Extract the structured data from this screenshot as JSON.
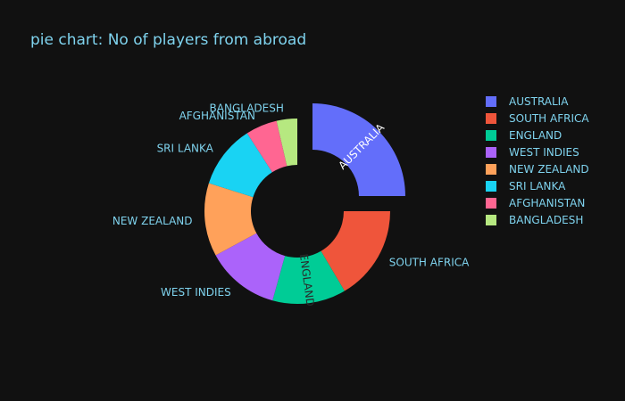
{
  "chart_data": {
    "type": "pie",
    "title": "pie chart: No of players from abroad",
    "hole": 0.5,
    "pulled": "AUSTRALIA",
    "legend_position": "top-right",
    "slices": [
      {
        "label": "AUSTRALIA",
        "value": 25.0,
        "color": "#636efa",
        "label_position": "inside"
      },
      {
        "label": "SOUTH AFRICA",
        "value": 16.5,
        "color": "#ef553b",
        "label_position": "outside"
      },
      {
        "label": "ENGLAND",
        "value": 12.8,
        "color": "#00cc96",
        "label_position": "inside"
      },
      {
        "label": "WEST INDIES",
        "value": 12.8,
        "color": "#ab63fa",
        "label_position": "outside"
      },
      {
        "label": "NEW ZEALAND",
        "value": 12.8,
        "color": "#ffa15a",
        "label_position": "outside"
      },
      {
        "label": "SRI LANKA",
        "value": 11.0,
        "color": "#19d3f3",
        "label_position": "outside"
      },
      {
        "label": "AFGHANISTAN",
        "value": 5.5,
        "color": "#ff6692",
        "label_position": "outside"
      },
      {
        "label": "BANGLADESH",
        "value": 3.6,
        "color": "#b6e880",
        "label_position": "outside"
      }
    ]
  }
}
